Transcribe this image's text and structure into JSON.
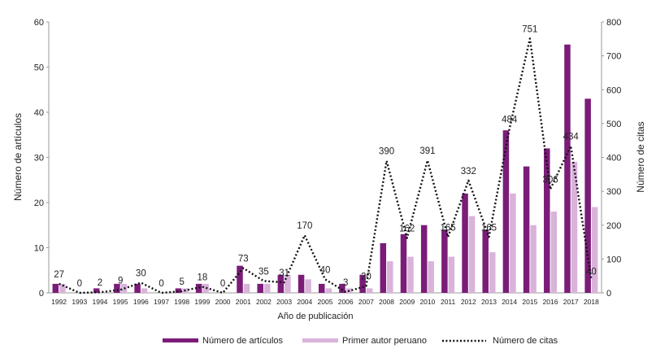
{
  "chart_data": {
    "type": "bar",
    "categories": [
      "1992",
      "1993",
      "1994",
      "1995",
      "1996",
      "1997",
      "1998",
      "1999",
      "2000",
      "2001",
      "2002",
      "2003",
      "2004",
      "2005",
      "2006",
      "2007",
      "2008",
      "2009",
      "2010",
      "2011",
      "2012",
      "2013",
      "2014",
      "2015",
      "2016",
      "2017",
      "2018"
    ],
    "series": [
      {
        "name": "Número de artículos",
        "kind": "bar",
        "axis": "left",
        "color": "#7B1C78",
        "values": [
          2,
          0,
          1,
          2,
          2,
          0,
          1,
          2,
          0,
          6,
          2,
          4,
          4,
          2,
          2,
          4,
          11,
          13,
          15,
          14,
          22,
          14,
          36,
          28,
          32,
          55,
          43
        ]
      },
      {
        "name": "Primer autor peruano",
        "kind": "bar",
        "axis": "left",
        "color": "#D9B3DA",
        "values": [
          2,
          0,
          0,
          2,
          1,
          0,
          1,
          2,
          0,
          2,
          2,
          4,
          3,
          1,
          1,
          1,
          7,
          8,
          7,
          8,
          17,
          9,
          22,
          15,
          18,
          29,
          19
        ]
      },
      {
        "name": "Número de citas",
        "kind": "line",
        "style": "dotted",
        "axis": "right",
        "color": "#111111",
        "values": [
          27,
          0,
          2,
          9,
          30,
          0,
          5,
          18,
          0,
          73,
          35,
          31,
          170,
          40,
          3,
          20,
          390,
          162,
          391,
          165,
          332,
          165,
          484,
          751,
          306,
          434,
          40
        ]
      }
    ],
    "xlabel": "Año de publicación",
    "ylabel": "Número de artículos",
    "y2label": "Número de citas",
    "ylim": [
      0,
      60
    ],
    "y2lim": [
      0,
      800
    ],
    "yticks": [
      "0",
      "10",
      "20",
      "30",
      "40",
      "50",
      "60"
    ],
    "y2ticks": [
      "0",
      "100",
      "200",
      "300",
      "400",
      "500",
      "600",
      "700",
      "800"
    ],
    "data_labels": [
      "27",
      "0",
      "2",
      "9",
      "30",
      "0",
      "5",
      "18",
      "0",
      "73",
      "35",
      "31",
      "170",
      "40",
      "3",
      "20",
      "390",
      "162",
      "391",
      "165",
      "332",
      "165",
      "484",
      "751",
      "306",
      "434",
      "40"
    ],
    "grid": false,
    "legend": "bottom"
  }
}
